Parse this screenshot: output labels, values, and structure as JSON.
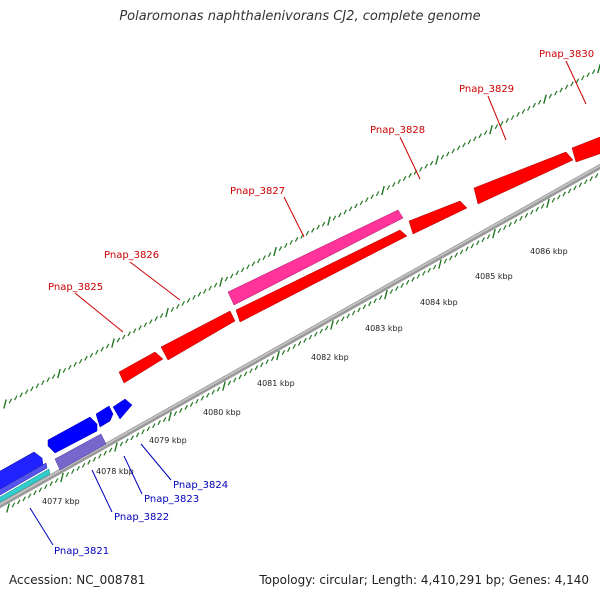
{
  "title": "Polaromonas naphthalenivorans CJ2, complete genome",
  "footer": {
    "accession": "Accession: NC_008781",
    "summary": "Topology: circular; Length: 4,410,291 bp; Genes: 4,140"
  },
  "colors": {
    "forward_gene": "#ff0000",
    "forward_gene_highlight": "#ff3399",
    "reverse_gene": "#0000ff",
    "reverse_gene_alt": "#7766cc",
    "reverse_gene_cyan": "#33cccc",
    "backbone": "#888888",
    "tick": "#227722",
    "forward_label": "#cc0000",
    "reverse_label": "#0000bb"
  },
  "ticks": [
    "4077 kbp",
    "4078 kbp",
    "4079 kbp",
    "4080 kbp",
    "4081 kbp",
    "4082 kbp",
    "4083 kbp",
    "4084 kbp",
    "4085 kbp",
    "4086 kbp"
  ],
  "forward_genes": [
    {
      "label": "Pnap_3825",
      "color": "#ff0000"
    },
    {
      "label": "Pnap_3826",
      "color": "#ff0000"
    },
    {
      "label": "Pnap_3827",
      "color": "#ff3399"
    },
    {
      "label": "Pnap_3828",
      "color": "#ff0000"
    },
    {
      "label": "Pnap_3829",
      "color": "#ff0000"
    },
    {
      "label": "Pnap_3830",
      "color": "#ff0000"
    }
  ],
  "reverse_genes": [
    {
      "label": "Pnap_3821",
      "color": "#33cccc"
    },
    {
      "label": "Pnap_3822",
      "color": "#7766cc"
    },
    {
      "label": "Pnap_3823",
      "color": "#0000ff"
    },
    {
      "label": "Pnap_3824",
      "color": "#0000ff"
    }
  ]
}
